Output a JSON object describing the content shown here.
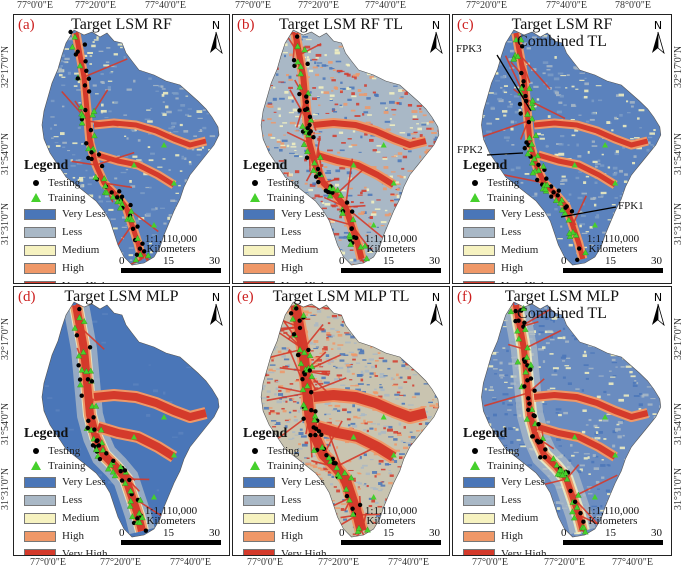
{
  "coords": {
    "top_ticks": [
      "77°0'0\"E",
      "77°20'0\"E",
      "77°40'0\"E",
      "77°0'0\"E",
      "77°20'0\"E",
      "77°40'0\"E",
      "77°20'0\"E",
      "77°40'0\"E",
      "78°0'0\"E"
    ],
    "bottom_ticks": [
      "77°0'0\"E",
      "77°20'0\"E",
      "77°40'0\"E",
      "77°0'0\"E",
      "77°20'0\"E",
      "77°40'0\"E",
      "77°0'0\"E",
      "77°20'0\"E",
      "77°40'0\"E"
    ],
    "left_ticks": [
      "32°17'0\"N",
      "31°54'0\"N",
      "31°31'0\"N"
    ]
  },
  "panels": [
    {
      "label": "(a)",
      "title1": "Target LSM RF",
      "title2": "",
      "style": "rf"
    },
    {
      "label": "(b)",
      "title1": "Target LSM RF TL",
      "title2": "",
      "style": "rftl"
    },
    {
      "label": "(c)",
      "title1": "Target LSM RF",
      "title2": "Combined TL",
      "style": "rfc"
    },
    {
      "label": "(d)",
      "title1": "Target LSM MLP",
      "title2": "",
      "style": "mlp"
    },
    {
      "label": "(e)",
      "title1": "Target LSM MLP TL",
      "title2": "",
      "style": "mlptl"
    },
    {
      "label": "(f)",
      "title1": "Target LSM MLP",
      "title2": "Combined TL",
      "style": "mlpc"
    }
  ],
  "legend": {
    "title": "Legend",
    "testing": "Testing",
    "training": "Training",
    "classes": [
      {
        "label": "Very Less",
        "color": "#4a76b8"
      },
      {
        "label": "Less",
        "color": "#a9b8c6"
      },
      {
        "label": "Medium",
        "color": "#f6f2c0"
      },
      {
        "label": "High",
        "color": "#ef9868"
      },
      {
        "label": "Very High",
        "color": "#d43a2b"
      }
    ]
  },
  "scale": {
    "ratio": "1:1,110,000",
    "unit": "Kilometers",
    "ticks": [
      "0",
      "15",
      "30"
    ]
  },
  "north_label": "N",
  "callouts": [
    "FPK3",
    "FPK2",
    "FPK1"
  ],
  "colors": {
    "testing": "#000000",
    "training": "#46d02c",
    "river": "#d43a2b"
  }
}
